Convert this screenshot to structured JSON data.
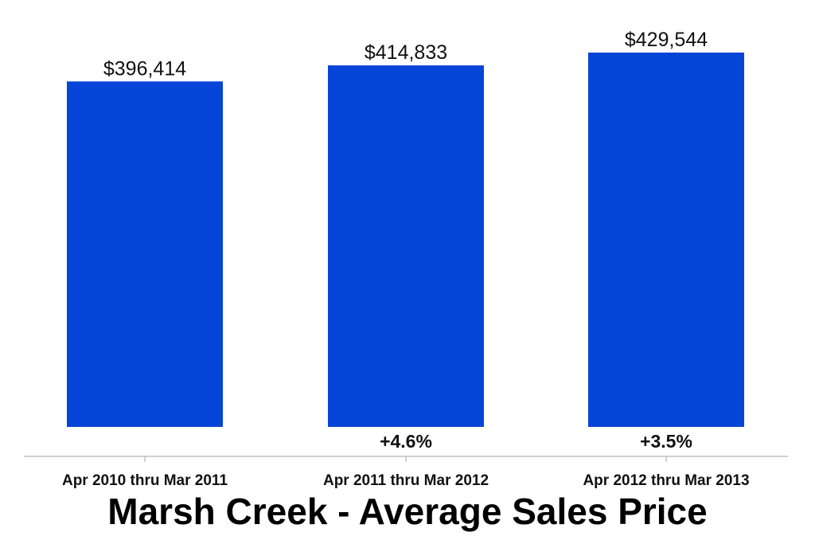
{
  "chart_data": {
    "type": "bar",
    "title": "Marsh Creek - Average Sales Price",
    "categories": [
      "Apr 2010 thru Mar 2011",
      "Apr 2011 thru Mar 2012",
      "Apr 2012 thru Mar 2013"
    ],
    "values": [
      396414,
      414833,
      429544
    ],
    "value_labels": [
      "$396,414",
      "$414,833",
      "$429,544"
    ],
    "change_labels": [
      "",
      "+4.6%",
      "+3.5%"
    ],
    "ylim": [
      0,
      429544
    ],
    "grid": false,
    "bar_color": "#0645d8"
  }
}
